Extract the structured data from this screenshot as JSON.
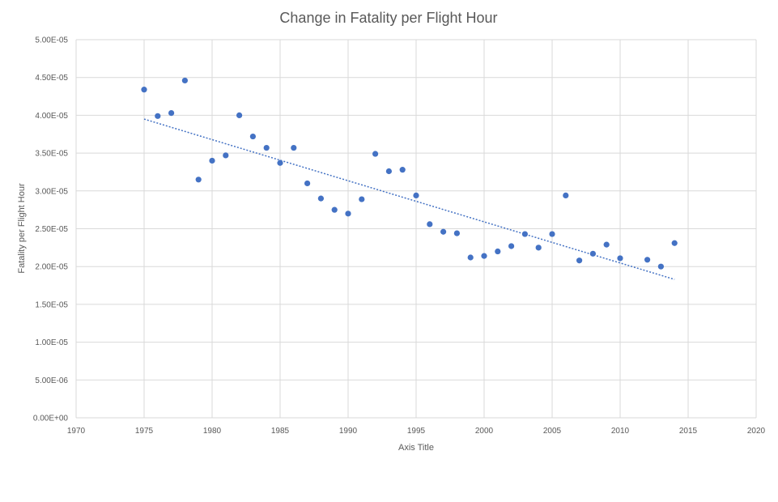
{
  "chart_data": {
    "type": "scatter",
    "title": "Change in Fatality per Flight Hour",
    "xlabel": "Axis Title",
    "ylabel": "Fatality per Flight Hour",
    "xlim": [
      1970,
      2020
    ],
    "ylim": [
      0,
      5e-05
    ],
    "x_ticks": [
      "1970",
      "1975",
      "1980",
      "1985",
      "1990",
      "1995",
      "2000",
      "2005",
      "2010",
      "2015",
      "2020"
    ],
    "y_ticks": [
      "0.00E+00",
      "5.00E-06",
      "1.00E-05",
      "1.50E-05",
      "2.00E-05",
      "2.50E-05",
      "3.00E-05",
      "3.50E-05",
      "4.00E-05",
      "4.50E-05",
      "5.00E-05"
    ],
    "grid": true,
    "legend": "none",
    "marker_color": "#4472c4",
    "trendline": {
      "type": "linear",
      "x": [
        1975,
        2014
      ],
      "y": [
        3.95e-05,
        1.83e-05
      ]
    },
    "series": [
      {
        "x": [
          1975,
          1976,
          1977,
          1978,
          1979,
          1980,
          1981,
          1982,
          1983,
          1984,
          1985,
          1986,
          1987,
          1988,
          1989,
          1990,
          1991,
          1992,
          1993,
          1994,
          1995,
          1996,
          1997,
          1998,
          1999,
          2000,
          2001,
          2002,
          2003,
          2004,
          2005,
          2006,
          2007,
          2008,
          2009,
          2010,
          2012,
          2013,
          2014
        ],
        "y": [
          4.34e-05,
          3.99e-05,
          4.03e-05,
          4.46e-05,
          3.15e-05,
          3.4e-05,
          3.47e-05,
          4e-05,
          3.72e-05,
          3.57e-05,
          3.37e-05,
          3.57e-05,
          3.1e-05,
          2.9e-05,
          2.75e-05,
          2.7e-05,
          2.89e-05,
          3.49e-05,
          3.26e-05,
          3.28e-05,
          2.94e-05,
          2.56e-05,
          2.46e-05,
          2.44e-05,
          2.12e-05,
          2.14e-05,
          2.2e-05,
          2.27e-05,
          2.43e-05,
          2.25e-05,
          2.43e-05,
          2.94e-05,
          2.08e-05,
          2.17e-05,
          2.29e-05,
          2.11e-05,
          2.09e-05,
          2e-05,
          2.31e-05
        ]
      }
    ]
  }
}
